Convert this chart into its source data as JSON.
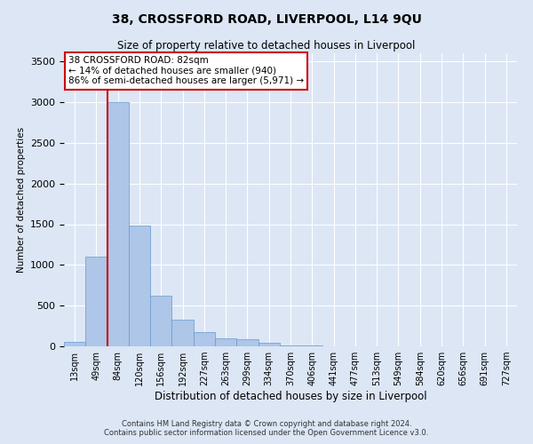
{
  "title1": "38, CROSSFORD ROAD, LIVERPOOL, L14 9QU",
  "title2": "Size of property relative to detached houses in Liverpool",
  "xlabel": "Distribution of detached houses by size in Liverpool",
  "ylabel": "Number of detached properties",
  "footnote1": "Contains HM Land Registry data © Crown copyright and database right 2024.",
  "footnote2": "Contains public sector information licensed under the Open Government Licence v3.0.",
  "annotation_title": "38 CROSSFORD ROAD: 82sqm",
  "annotation_line2": "← 14% of detached houses are smaller (940)",
  "annotation_line3": "86% of semi-detached houses are larger (5,971) →",
  "bar_color": "#aec6e8",
  "bar_edge_color": "#6699cc",
  "vline_color": "#cc0000",
  "annotation_box_color": "#ffffff",
  "annotation_box_edge": "#cc0000",
  "background_color": "#dce6f5",
  "plot_bg_color": "#dce6f5",
  "grid_color": "#ffffff",
  "categories": [
    "13sqm",
    "49sqm",
    "84sqm",
    "120sqm",
    "156sqm",
    "192sqm",
    "227sqm",
    "263sqm",
    "299sqm",
    "334sqm",
    "370sqm",
    "406sqm",
    "441sqm",
    "477sqm",
    "513sqm",
    "549sqm",
    "584sqm",
    "620sqm",
    "656sqm",
    "691sqm",
    "727sqm"
  ],
  "values": [
    50,
    1100,
    3000,
    1480,
    620,
    330,
    180,
    95,
    85,
    40,
    15,
    8,
    5,
    3,
    2,
    1,
    0,
    0,
    0,
    0,
    0
  ],
  "ylim": [
    0,
    3600
  ],
  "yticks": [
    0,
    500,
    1000,
    1500,
    2000,
    2500,
    3000,
    3500
  ],
  "vline_x": 1.52
}
